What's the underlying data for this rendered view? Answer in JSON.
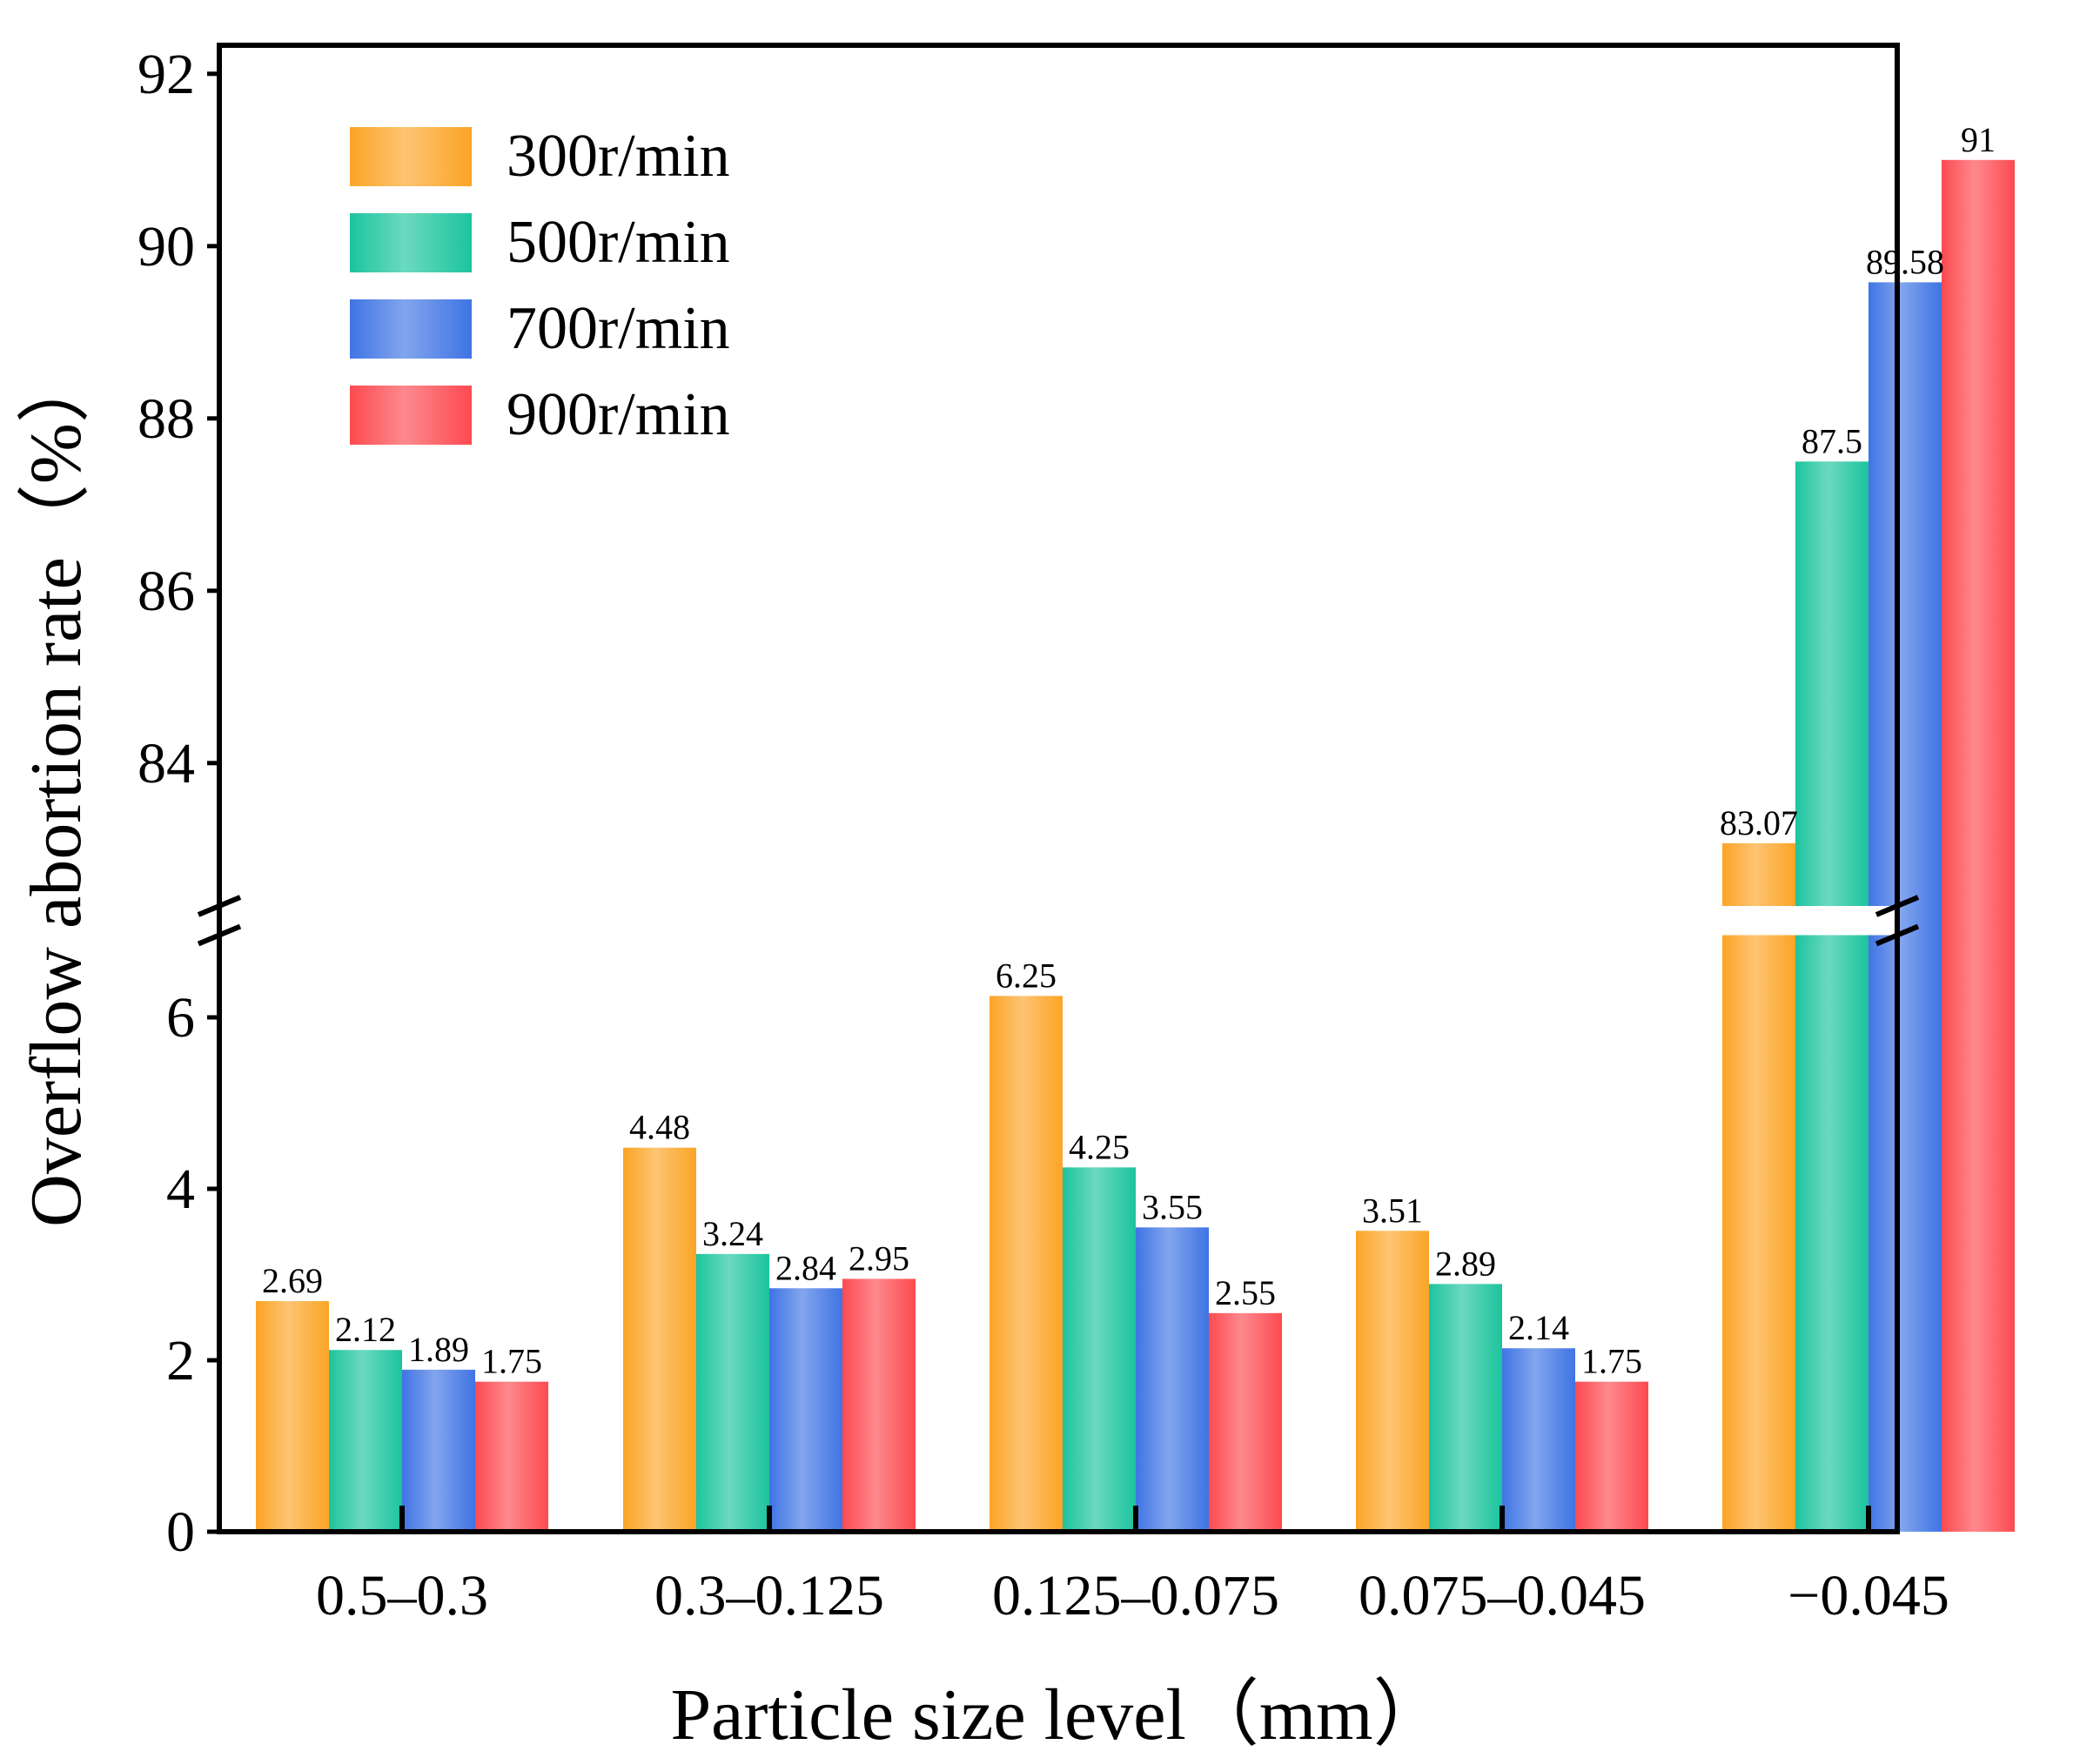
{
  "chart_data": {
    "type": "bar",
    "title": "",
    "xlabel": "Particle size level（mm）",
    "ylabel": "Overflow abortion rate（%）",
    "categories": [
      "0.5–0.3",
      "0.3–0.125",
      "0.125–0.075",
      "0.075–0.045",
      "−0.045"
    ],
    "series": [
      {
        "name": "300r/min",
        "color": "#fca426",
        "values": [
          2.69,
          4.48,
          6.25,
          3.51,
          83.07
        ],
        "labels": [
          "2.69",
          "4.48",
          "6.25",
          "3.51",
          "83.07"
        ]
      },
      {
        "name": "500r/min",
        "color": "#1cc49e",
        "values": [
          2.12,
          3.24,
          4.25,
          2.89,
          87.5
        ],
        "labels": [
          "2.12",
          "3.24",
          "4.25",
          "2.89",
          "87.5"
        ]
      },
      {
        "name": "700r/min",
        "color": "#3f74e4",
        "values": [
          1.89,
          2.84,
          3.55,
          2.14,
          89.58
        ],
        "labels": [
          "1.89",
          "2.84",
          "3.55",
          "2.14",
          "89.58"
        ]
      },
      {
        "name": "900r/min",
        "color": "#fc4a50",
        "values": [
          1.75,
          2.95,
          2.55,
          1.75,
          91
        ],
        "labels": [
          "1.75",
          "2.95",
          "2.55",
          "1.75",
          "91"
        ]
      }
    ],
    "axis_break": {
      "lower_range": [
        0,
        7
      ],
      "upper_range": [
        82.2,
        92
      ]
    },
    "y_ticks_lower": [
      "0",
      "2",
      "4",
      "6"
    ],
    "y_ticks_upper": [
      "84",
      "86",
      "88",
      "90",
      "92"
    ],
    "legend_position": "top-left",
    "grid": false
  }
}
